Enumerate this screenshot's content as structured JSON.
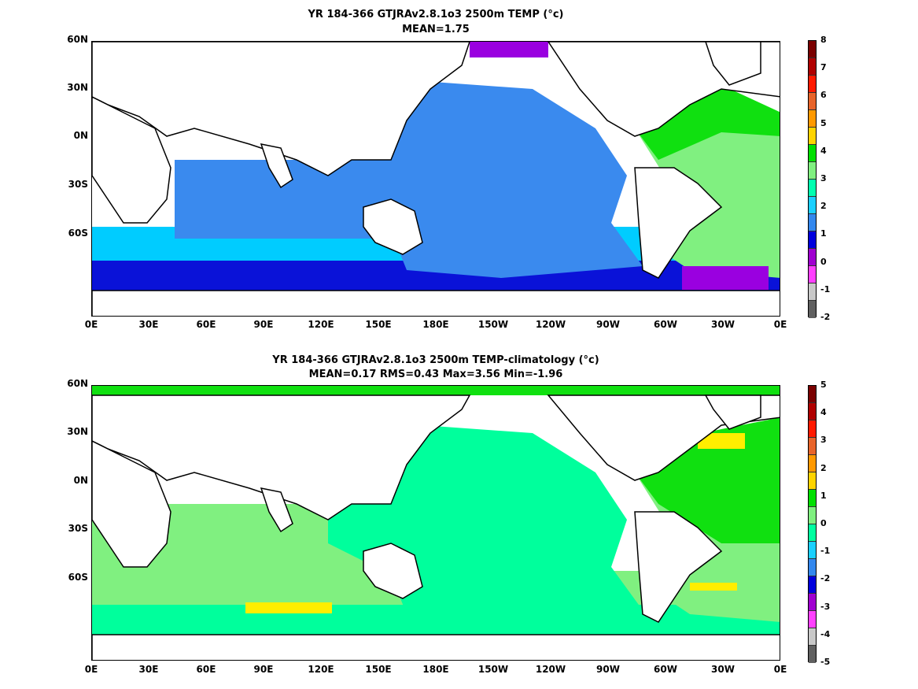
{
  "maps": [
    {
      "title_line1": "YR 184-366 GTJRAv2.8.1o3 2500m TEMP (°c)",
      "title_line2": "MEAN=1.75",
      "colorbar": {
        "labels": [
          "8",
          "7",
          "6",
          "5",
          "4",
          "3",
          "2",
          "1",
          "0",
          "-1",
          "-2"
        ],
        "colors": [
          "#7a0000",
          "#b00000",
          "#ff1a00",
          "#e8642a",
          "#ff9900",
          "#ffd400",
          "#00e000",
          "#80f080",
          "#00ffb0",
          "#1ad0ff",
          "#3388ee",
          "#0000dd",
          "#a000d0",
          "#ff40ff",
          "#c8c8c8",
          "#606060"
        ]
      },
      "fill": {
        "pacific": "#3a8aee",
        "indian": "#3a8aee",
        "atlantic": "#80f080",
        "southern": "#00ccff",
        "antarctic": "#0a12d8",
        "arctic": "#9a00e0",
        "north_atlantic": "#10e010"
      }
    },
    {
      "title_line1": "YR 184-366 GTJRAv2.8.1o3 2500m TEMP-climatology (°c)",
      "title_line2": "MEAN=0.17   RMS=0.43   Max=3.56   Min=-1.96",
      "colorbar": {
        "labels": [
          "5",
          "4",
          "3",
          "2",
          "1",
          "0",
          "-1",
          "-2",
          "-3",
          "-4",
          "-5"
        ],
        "colors": [
          "#7a0000",
          "#b00000",
          "#ff1a00",
          "#e8642a",
          "#ff9900",
          "#ffd400",
          "#00e000",
          "#80f080",
          "#00ffa0",
          "#1ad0ff",
          "#3388ee",
          "#0000dd",
          "#a000d0",
          "#ff40ff",
          "#c8c8c8",
          "#606060"
        ]
      },
      "fill": {
        "pacific": "#00ff9c",
        "indian": "#80f080",
        "atlantic": "#80f080",
        "southern": "#80f080",
        "antarctic": "#00ff9c",
        "arctic": "#10e010",
        "north_atlantic": "#10e010"
      }
    }
  ],
  "axes": {
    "lat_ticks": [
      "60N",
      "30N",
      "0N",
      "30S",
      "60S"
    ],
    "lon_ticks": [
      "0E",
      "30E",
      "60E",
      "90E",
      "120E",
      "150E",
      "180E",
      "150W",
      "120W",
      "90W",
      "60W",
      "30W",
      "0E"
    ]
  }
}
